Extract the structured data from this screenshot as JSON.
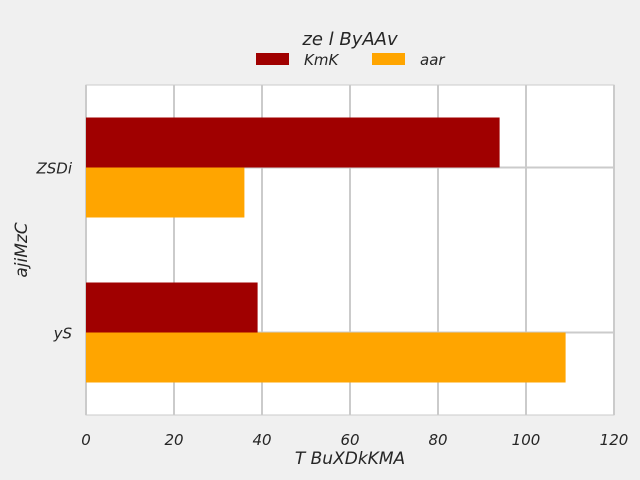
{
  "chart_data": {
    "type": "bar",
    "orientation": "horizontal",
    "legend_title": "ze l  ByAAv",
    "xlabel": "T BuXDkKMA",
    "ylabel": "ajiMzC",
    "xlim": [
      0,
      120
    ],
    "xticks": [
      "0",
      "20",
      "40",
      "60",
      "80",
      "100",
      "120"
    ],
    "categories": [
      "yS",
      "ZSDi"
    ],
    "grid": true,
    "legend_placement": "top-center",
    "series": [
      {
        "name": "KmK",
        "color": "#a00000",
        "values": [
          39,
          94
        ]
      },
      {
        "name": "aar",
        "color": "#ffa500",
        "values": [
          109,
          36
        ]
      }
    ],
    "colors": {
      "background": "#f0f0f0",
      "plot_area": "#ffffff",
      "grid": "#cbcbcb"
    }
  }
}
